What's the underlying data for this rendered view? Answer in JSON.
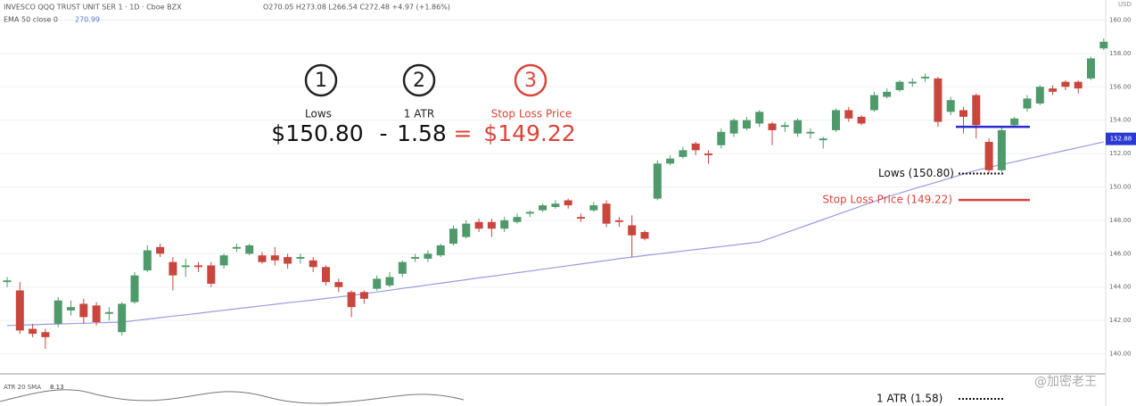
{
  "header": {
    "symbol": "INVESCO QQQ TRUST UNIT SER 1 · 1D · Cboe BZX",
    "ohlc": "O270.05 H273.08 L266.54 C272.48 +4.97 (+1.86%)",
    "ema_label": "EMA 50 close 0",
    "ema_value": "270.99",
    "currency": "USD"
  },
  "annotations": {
    "step1": "1",
    "step1_label": "Lows",
    "step2": "2",
    "step2_label": "1 ATR",
    "step3": "3",
    "step3_label": "Stop Loss Price",
    "eq_lows": "$150.80",
    "eq_minus": "-",
    "eq_atr": "1.58",
    "eq_equals": "=",
    "eq_stop": "$149.22",
    "lows_text": "Lows (150.80)",
    "stop_text": "Stop Loss Price (149.22)",
    "atr_text": "1 ATR (1.58)",
    "atr_pane_label": "ATR 20 SMA",
    "atr_pane_value": "8.13",
    "watermark": "@加密老王"
  },
  "chart_data": {
    "type": "candlestick",
    "up_color": "#4e9a6a",
    "down_color": "#c9463d",
    "ema_color": "#9b9be0",
    "open": [
      144.3,
      143.8,
      141.5,
      141.3,
      141.8,
      142.6,
      143.0,
      142.9,
      142.4,
      141.3,
      143.1,
      145.0,
      146.4,
      145.5,
      145.2,
      145.3,
      145.3,
      145.3,
      146.3,
      146.0,
      145.9,
      145.9,
      145.8,
      145.7,
      145.6,
      145.2,
      144.3,
      143.7,
      143.7,
      143.9,
      144.1,
      144.8,
      145.7,
      145.7,
      145.9,
      146.6,
      147.0,
      147.9,
      147.9,
      147.5,
      147.9,
      148.4,
      148.6,
      148.8,
      149.2,
      148.2,
      148.6,
      149.0,
      148.0,
      147.7,
      147.3,
      149.3,
      151.4,
      151.8,
      152.6,
      152.0,
      152.5,
      153.2,
      153.5,
      153.8,
      153.8,
      153.6,
      153.2,
      153.2,
      152.8,
      153.4,
      154.6,
      154.2,
      154.6,
      155.4,
      155.8,
      156.2,
      156.5,
      156.5,
      154.5,
      154.6,
      155.5,
      152.7,
      151.0,
      153.7,
      154.7,
      155.0,
      155.9,
      156.3,
      156.3,
      156.5,
      158.3
    ],
    "high": [
      144.6,
      144.3,
      141.8,
      141.5,
      143.4,
      143.2,
      143.3,
      143.1,
      142.8,
      143.1,
      144.9,
      146.5,
      146.6,
      145.8,
      145.7,
      145.5,
      145.5,
      146.0,
      146.6,
      146.6,
      146.1,
      146.4,
      146.0,
      146.0,
      145.8,
      145.3,
      144.5,
      143.8,
      143.8,
      144.7,
      144.9,
      145.6,
      146.0,
      146.2,
      146.6,
      147.7,
      148.0,
      148.1,
      148.1,
      148.2,
      148.4,
      148.6,
      149.0,
      149.2,
      149.3,
      148.4,
      149.1,
      149.2,
      148.2,
      148.3,
      147.4,
      151.6,
      151.9,
      152.4,
      152.7,
      152.2,
      153.5,
      154.1,
      154.2,
      154.6,
      153.9,
      153.9,
      154.1,
      153.5,
      153.0,
      154.7,
      154.8,
      154.3,
      155.7,
      155.9,
      156.4,
      156.5,
      156.8,
      156.6,
      155.4,
      154.8,
      155.6,
      152.9,
      153.6,
      154.2,
      155.5,
      156.1,
      156.1,
      156.4,
      156.4,
      157.8,
      158.9
    ],
    "low": [
      144.0,
      141.2,
      141.0,
      140.3,
      141.6,
      142.3,
      141.8,
      141.7,
      142.0,
      141.1,
      143.0,
      144.9,
      145.8,
      143.8,
      144.6,
      144.9,
      144.0,
      145.1,
      146.1,
      145.9,
      145.4,
      145.3,
      145.1,
      145.4,
      144.9,
      144.1,
      143.7,
      142.2,
      143.0,
      143.8,
      144.0,
      144.6,
      145.5,
      145.5,
      145.8,
      146.5,
      146.9,
      147.3,
      147.0,
      147.3,
      147.8,
      148.2,
      148.5,
      148.7,
      148.7,
      147.9,
      148.5,
      147.6,
      147.6,
      145.8,
      146.8,
      149.2,
      151.3,
      151.7,
      151.9,
      151.4,
      152.3,
      153.0,
      153.4,
      153.6,
      152.5,
      153.3,
      153.0,
      152.9,
      152.3,
      153.3,
      153.9,
      153.7,
      154.5,
      155.3,
      155.7,
      156.0,
      156.3,
      153.6,
      154.3,
      153.2,
      152.9,
      150.8,
      150.9,
      153.6,
      154.5,
      154.9,
      155.5,
      155.8,
      155.6,
      156.4,
      158.2
    ],
    "close": [
      144.4,
      141.4,
      141.2,
      141.0,
      143.2,
      142.8,
      142.2,
      141.9,
      142.5,
      143.0,
      144.7,
      146.2,
      146.0,
      144.7,
      145.3,
      145.2,
      144.2,
      145.9,
      146.4,
      146.5,
      145.5,
      145.6,
      145.4,
      145.8,
      145.2,
      144.3,
      144.0,
      142.8,
      143.3,
      144.5,
      144.6,
      145.5,
      145.8,
      146.0,
      146.5,
      147.5,
      147.8,
      147.5,
      147.5,
      148.0,
      148.2,
      148.5,
      148.9,
      149.0,
      148.9,
      148.1,
      148.9,
      147.8,
      147.9,
      147.1,
      146.9,
      151.4,
      151.7,
      152.2,
      152.2,
      151.9,
      153.3,
      154.0,
      154.0,
      154.5,
      153.4,
      153.7,
      154.0,
      153.3,
      152.9,
      154.6,
      154.1,
      153.8,
      155.5,
      155.7,
      156.3,
      156.3,
      156.6,
      153.9,
      155.2,
      154.2,
      153.7,
      151.0,
      153.4,
      154.1,
      155.3,
      156.0,
      155.7,
      156.0,
      155.9,
      157.7,
      158.7
    ],
    "ema": [
      141.7,
      141.72,
      141.74,
      141.77,
      141.79,
      141.81,
      141.83,
      141.86,
      141.88,
      141.9,
      141.99,
      142.08,
      142.17,
      142.26,
      142.34,
      142.43,
      142.52,
      142.61,
      142.7,
      142.79,
      142.88,
      142.97,
      143.06,
      143.14,
      143.23,
      143.32,
      143.41,
      143.5,
      143.6,
      143.71,
      143.81,
      143.92,
      144.02,
      144.13,
      144.23,
      144.34,
      144.44,
      144.55,
      144.65,
      144.75,
      144.86,
      144.96,
      145.07,
      145.17,
      145.28,
      145.38,
      145.49,
      145.59,
      145.7,
      145.8,
      145.89,
      145.98,
      146.07,
      146.16,
      146.25,
      146.34,
      146.43,
      146.52,
      146.61,
      146.7,
      146.97,
      147.24,
      147.51,
      147.78,
      148.05,
      148.32,
      148.59,
      148.86,
      149.13,
      149.4,
      149.63,
      149.86,
      150.09,
      150.31,
      150.54,
      150.77,
      151.0,
      151.17,
      151.34,
      151.51,
      151.68,
      151.85,
      152.02,
      152.19,
      152.36,
      152.53,
      152.7
    ],
    "ylim": [
      138.8,
      161.2
    ],
    "yticks": [
      {
        "value": 140,
        "label": "140.00"
      },
      {
        "value": 142,
        "label": "142.00"
      },
      {
        "value": 144,
        "label": "144.00"
      },
      {
        "value": 146,
        "label": "146.00"
      },
      {
        "value": 148,
        "label": "148.00"
      },
      {
        "value": 150,
        "label": "150.00"
      },
      {
        "value": 152,
        "label": "152.00"
      },
      {
        "value": 154,
        "label": "154.00"
      },
      {
        "value": 156,
        "label": "156.00"
      },
      {
        "value": 158,
        "label": "158.00"
      },
      {
        "value": 160,
        "label": "160.00"
      }
    ],
    "last_price": {
      "value": 152.88,
      "label": "152.88"
    },
    "lows_level": 150.8,
    "stop_level": 149.22,
    "breakout_level": 153.6,
    "grid": true
  }
}
